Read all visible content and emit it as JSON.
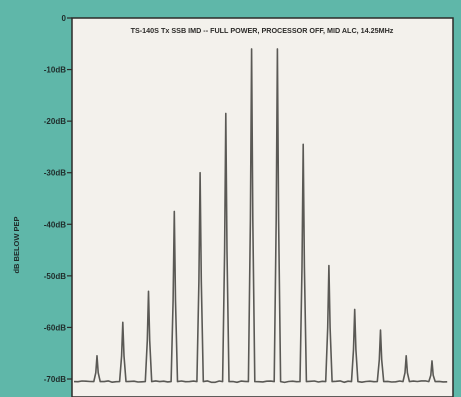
{
  "chart_data": {
    "type": "line",
    "title": "TS-140S Tx SSB IMD -- FULL POWER, PROCESSOR OFF, MID ALC, 14.25MHz",
    "ylabel": "dB BELOW PEP",
    "xlabel": "",
    "ylim": [
      -70,
      0
    ],
    "y_ticks": [
      {
        "value": 0,
        "label": "0"
      },
      {
        "value": -10,
        "label": "-10dB"
      },
      {
        "value": -20,
        "label": "-20dB"
      },
      {
        "value": -30,
        "label": "-30dB"
      },
      {
        "value": -40,
        "label": "-40dB"
      },
      {
        "value": -50,
        "label": "-50dB"
      },
      {
        "value": -60,
        "label": "-60dB"
      },
      {
        "value": -70,
        "label": "-70dB"
      }
    ],
    "grid": false,
    "noise_floor": -70.5,
    "series": [
      {
        "peaks": [
          {
            "order": 1,
            "value": -65.5
          },
          {
            "order": 2,
            "value": -59
          },
          {
            "order": 3,
            "value": -53
          },
          {
            "order": 4,
            "value": -37.5
          },
          {
            "order": 5,
            "value": -30
          },
          {
            "order": 6,
            "value": -18.5
          },
          {
            "order": 7,
            "value": -6
          },
          {
            "order": 8,
            "value": -6
          },
          {
            "order": 9,
            "value": -24.5
          },
          {
            "order": 10,
            "value": -48
          },
          {
            "order": 11,
            "value": -56.5
          },
          {
            "order": 12,
            "value": -60.5
          },
          {
            "order": 13,
            "value": -65.5
          },
          {
            "order": 14,
            "value": -66.5
          }
        ]
      }
    ],
    "colors": {
      "background": "#5fb7a9",
      "plot_area": "#f3f1ec",
      "trace": "#5a5955",
      "axis": "#2c2b29"
    }
  }
}
